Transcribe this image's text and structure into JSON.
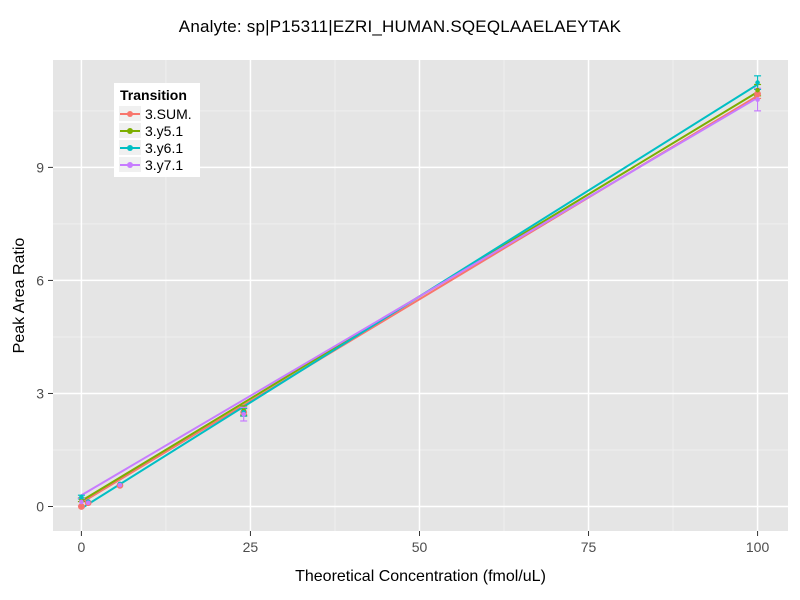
{
  "colors": {
    "background": "#FFFFFF",
    "panel_bg": "#E5E5E5",
    "grid_major": "#FFFFFF",
    "grid_minor": "#EFEFEF",
    "tick_mark": "#333333",
    "tick_label": "#4D4D4D",
    "text": "#000000"
  },
  "chart_data": {
    "type": "line",
    "title": "Analyte: sp|P15311|EZRI_HUMAN.SQEQLAAELAEYTAK",
    "xlabel": "Theoretical Concentration (fmol/uL)",
    "ylabel": "Peak Area Ratio",
    "xlim": [
      -4.2,
      104.5
    ],
    "ylim": [
      -0.65,
      11.85
    ],
    "xticks": [
      0,
      25,
      50,
      75,
      100
    ],
    "yticks": [
      0,
      3,
      6,
      9
    ],
    "grid": "major white, minor faint, gray panel (ggplot style)",
    "legend_title": "Transition",
    "legend_position": "top-left inside panel",
    "x": [
      0,
      1,
      5.7,
      24,
      100
    ],
    "series": [
      {
        "name": "3.SUM.",
        "color": "#F8766D",
        "marker_size": 3.4,
        "y": [
          0.0,
          0.1,
          0.56,
          2.5,
          10.95
        ],
        "yerr": [
          0,
          0,
          0,
          0.1,
          0.12
        ],
        "trend": [
          [
            0,
            0.1
          ],
          [
            100,
            10.9
          ]
        ]
      },
      {
        "name": "3.y5.1",
        "color": "#7CAE00",
        "marker_size": 2.3,
        "y": [
          0.18,
          0.12,
          0.58,
          2.55,
          11.05
        ],
        "yerr": [
          0.05,
          0,
          0,
          0.12,
          0.15
        ],
        "trend": [
          [
            0,
            0.15
          ],
          [
            100,
            11.0
          ]
        ]
      },
      {
        "name": "3.y6.1",
        "color": "#00BFC4",
        "marker_size": 2.3,
        "y": [
          0.25,
          0.13,
          0.6,
          2.5,
          11.25
        ],
        "yerr": [
          0.05,
          0,
          0,
          0.1,
          0.18
        ],
        "trend": [
          [
            0,
            -0.05
          ],
          [
            100,
            11.2
          ]
        ]
      },
      {
        "name": "3.y7.1",
        "color": "#C77CFF",
        "marker_size": 2.3,
        "y": [
          0.12,
          0.1,
          0.57,
          2.45,
          10.8
        ],
        "yerr": [
          0.1,
          0,
          0,
          0.18,
          0.3
        ],
        "trend": [
          [
            0,
            0.3
          ],
          [
            100,
            10.85
          ]
        ]
      }
    ]
  }
}
